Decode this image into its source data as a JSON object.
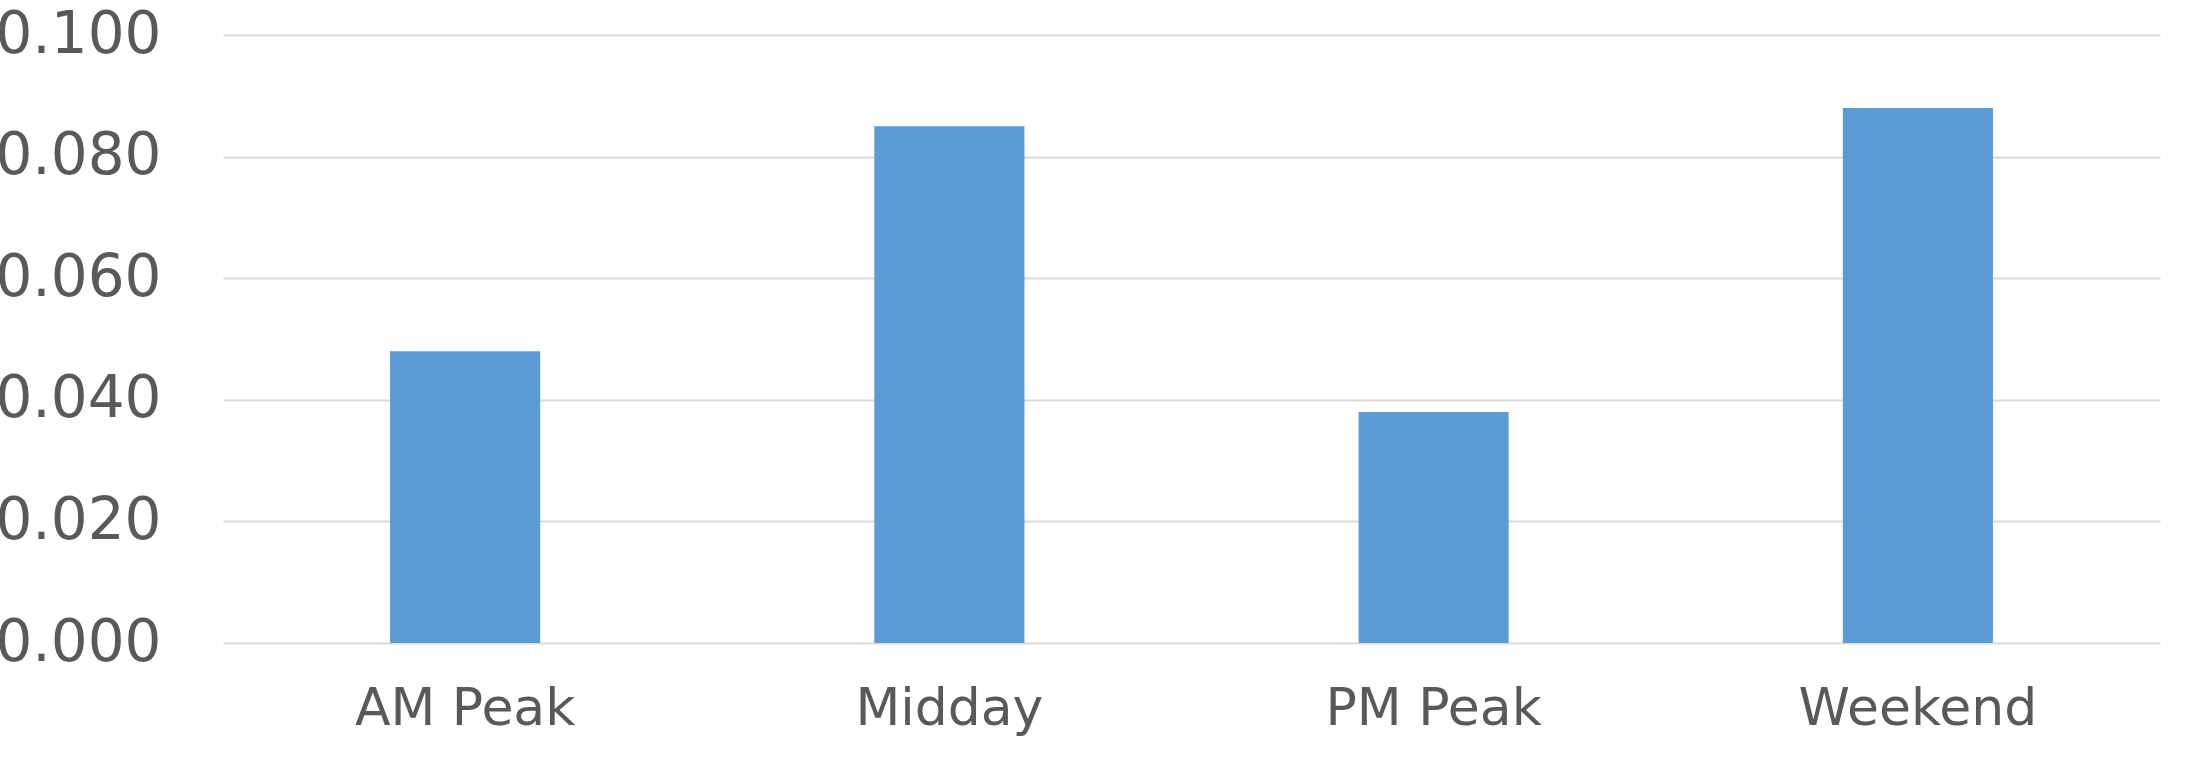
{
  "chart_data": {
    "type": "bar",
    "categories": [
      "AM Peak",
      "Midday",
      "PM Peak",
      "Weekend"
    ],
    "values": [
      0.048,
      0.085,
      0.038,
      0.088
    ],
    "color": "#5b9bd5",
    "ylim": [
      0,
      0.1
    ],
    "yticks": [
      {
        "value": 0,
        "label": "0.000"
      },
      {
        "value": 0.02,
        "label": "0.020"
      },
      {
        "value": 0.04,
        "label": "0.040"
      },
      {
        "value": 0.06,
        "label": "0.060"
      },
      {
        "value": 0.08,
        "label": "0.080"
      },
      {
        "value": 0.1,
        "label": "0.100"
      }
    ],
    "grid": "y"
  }
}
